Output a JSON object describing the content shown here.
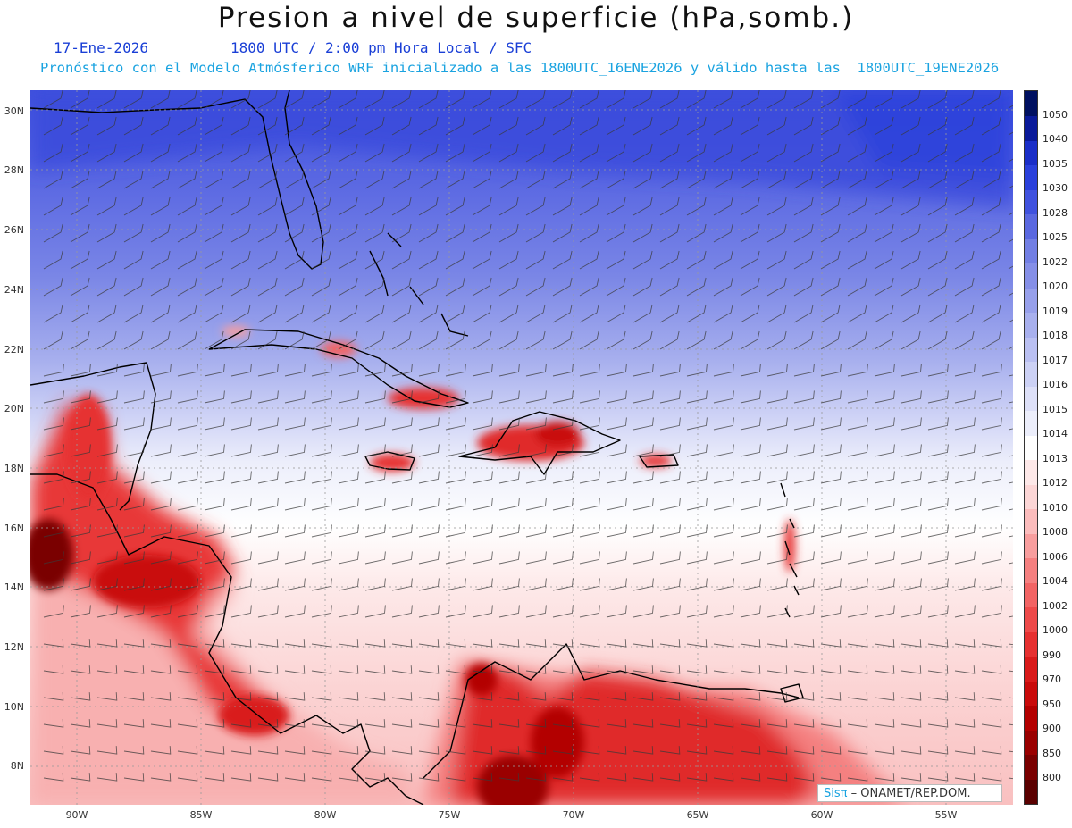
{
  "header": {
    "title": "Presion a nivel de superficie (hPa,somb.)",
    "date": "17-Ene-2026",
    "time_info": "1800 UTC / 2:00 pm Hora Local / SFC",
    "forecast_info": "Pronóstico con el Modelo Atmósferico WRF inicializado a las 1800UTC_16ENE2026 y válido hasta las  1800UTC_19ENE2026"
  },
  "map": {
    "projection": "lat-lon",
    "lat_range": [
      6.7,
      30.7
    ],
    "lon_range": [
      -92.0,
      -52.5
    ],
    "lat_ticks": [
      "30N",
      "28N",
      "26N",
      "24N",
      "22N",
      "20N",
      "18N",
      "16N",
      "14N",
      "12N",
      "10N",
      "8N"
    ],
    "lon_ticks": [
      "90W",
      "85W",
      "80W",
      "75W",
      "70W",
      "65W",
      "60W",
      "55W"
    ],
    "grid": "dotted",
    "overlay": "wind barbs"
  },
  "colorbar": {
    "levels": [
      "800",
      "850",
      "900",
      "950",
      "970",
      "990",
      "1000",
      "1002",
      "1004",
      "1006",
      "1008",
      "1010",
      "1012",
      "1013",
      "1014",
      "1015",
      "1016",
      "1017",
      "1018",
      "1019",
      "1020",
      "1022",
      "1025",
      "1028",
      "1030",
      "1035",
      "1040",
      "1050"
    ],
    "colors": [
      "#5a0000",
      "#7a0000",
      "#9a0000",
      "#b30000",
      "#c90a0a",
      "#d91a1a",
      "#e63030",
      "#ee4a4a",
      "#f26464",
      "#f58080",
      "#f89e9e",
      "#fbbcbc",
      "#fcd6d6",
      "#fde8e8",
      "#ffffff",
      "#eceefb",
      "#dde0f8",
      "#ccd1f5",
      "#bac0f2",
      "#a8b0ee",
      "#97a0eb",
      "#858fe7",
      "#727fe4",
      "#5a68e0",
      "#4052de",
      "#2a40db",
      "#1a2ec8",
      "#0a1a9a",
      "#001060"
    ]
  },
  "credit": {
    "brand": "Sisπ",
    "text": "– ONAMET/REP.DOM."
  }
}
